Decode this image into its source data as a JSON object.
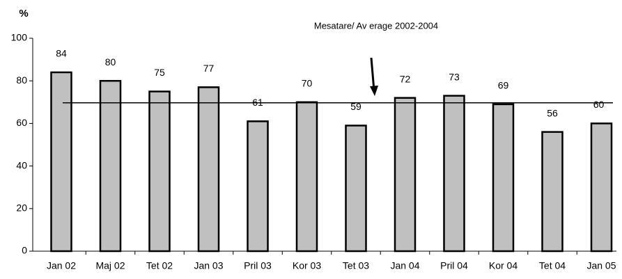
{
  "chart_data": {
    "type": "bar",
    "y_label": "%",
    "annotation": "Mesatare/ Av erage 2002-2004",
    "categories": [
      "Jan 02",
      "Maj 02",
      "Tet 02",
      "Jan 03",
      "Pril 03",
      "Kor 03",
      "Tet 03",
      "Jan 04",
      "Pril 04",
      "Kor 04",
      "Tet 04",
      "Jan 05"
    ],
    "values": [
      84,
      80,
      75,
      77,
      61,
      70,
      59,
      72,
      73,
      69,
      56,
      60
    ],
    "average": 69.7,
    "color": "#c0c0c0",
    "ylim": [
      0,
      100
    ],
    "yticks": [
      0,
      20,
      40,
      60,
      80,
      100
    ],
    "grid": false
  }
}
